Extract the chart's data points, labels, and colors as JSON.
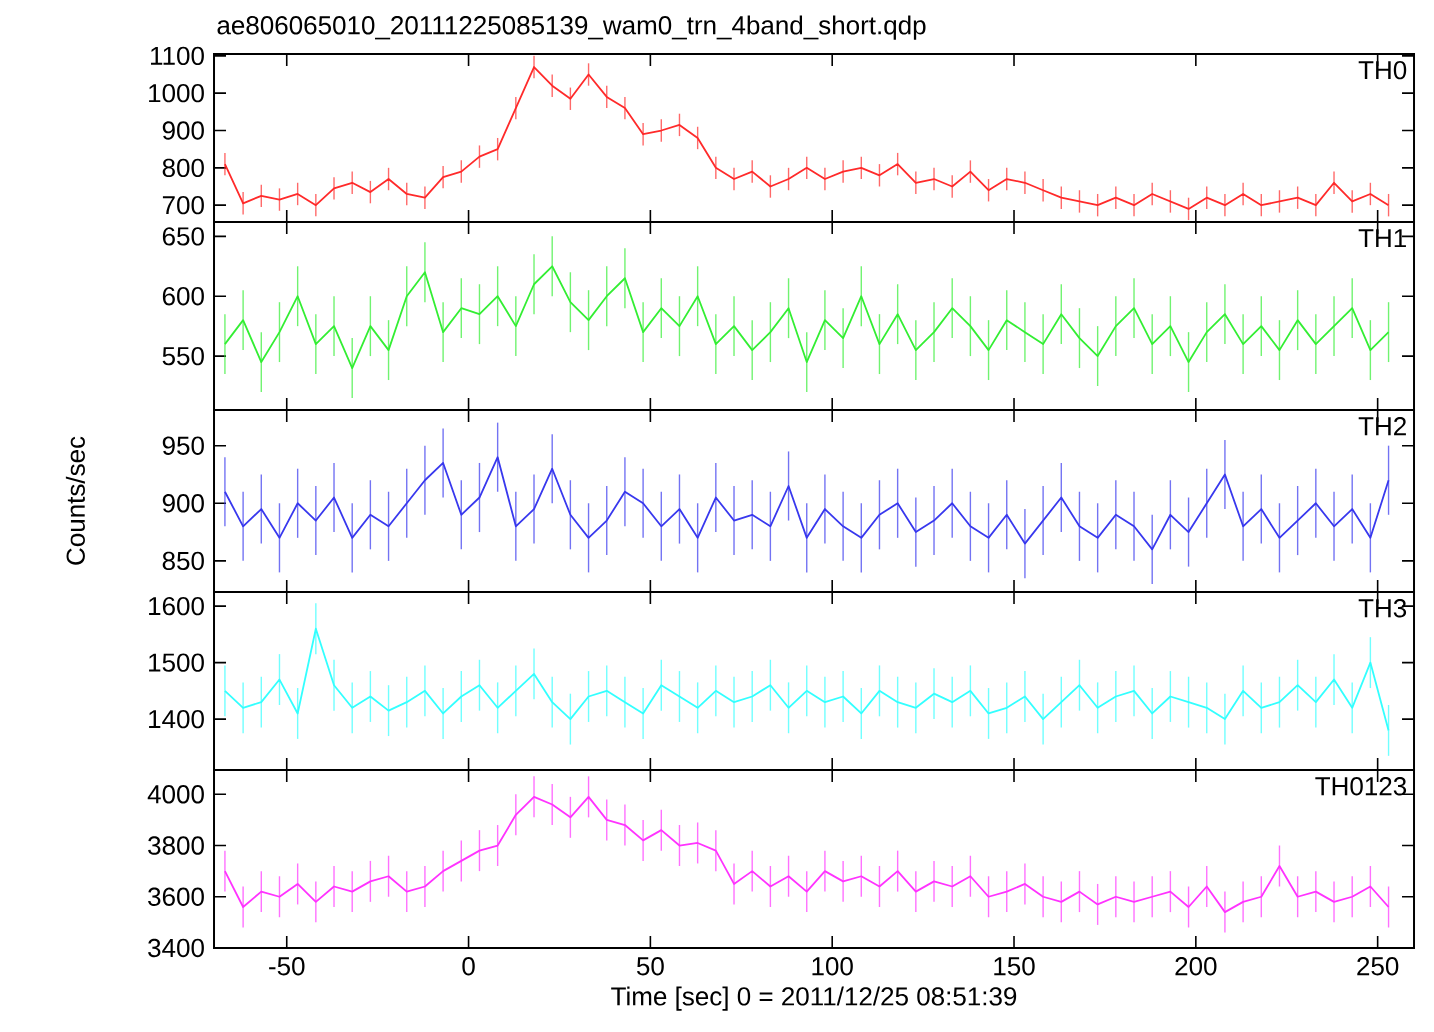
{
  "chart_data": [
    {
      "type": "line",
      "title": "ae806065010_20111225085139_wam0_trn_4band_short.qdp",
      "tick_labels": "y",
      "marker": "none",
      "line_style": "solid",
      "xlim": [
        -70,
        260
      ],
      "xticks": [
        -50,
        0,
        50,
        100,
        150,
        200,
        250
      ],
      "ylim": [
        655,
        1105
      ],
      "yticks": [
        700,
        800,
        900,
        1000,
        1100
      ],
      "x": [
        -67,
        -62,
        -57,
        -52,
        -47,
        -42,
        -37,
        -32,
        -27,
        -22,
        -17,
        -12,
        -7,
        -2,
        3,
        8,
        13,
        18,
        23,
        28,
        33,
        38,
        43,
        48,
        53,
        58,
        63,
        68,
        73,
        78,
        83,
        88,
        93,
        98,
        103,
        108,
        113,
        118,
        123,
        128,
        133,
        138,
        143,
        148,
        153,
        158,
        163,
        168,
        173,
        178,
        183,
        188,
        193,
        198,
        203,
        208,
        213,
        218,
        223,
        228,
        233,
        238,
        243,
        248,
        253
      ],
      "series": [
        {
          "name": "TH0",
          "color": "#ff2a2a",
          "values": [
            810,
            705,
            725,
            715,
            730,
            700,
            745,
            760,
            735,
            770,
            730,
            720,
            775,
            790,
            830,
            850,
            960,
            1070,
            1020,
            985,
            1050,
            990,
            960,
            890,
            900,
            915,
            880,
            800,
            770,
            790,
            750,
            770,
            800,
            770,
            790,
            800,
            780,
            810,
            760,
            770,
            750,
            790,
            740,
            770,
            760,
            740,
            720,
            710,
            700,
            720,
            700,
            730,
            710,
            690,
            720,
            700,
            730,
            700,
            710,
            720,
            700,
            760,
            710,
            730,
            700
          ],
          "errors": [
            30,
            30,
            30,
            30,
            30,
            30,
            30,
            30,
            30,
            30,
            30,
            30,
            30,
            30,
            30,
            30,
            30,
            30,
            30,
            30,
            30,
            30,
            30,
            30,
            30,
            30,
            30,
            30,
            30,
            30,
            30,
            30,
            30,
            30,
            30,
            30,
            30,
            30,
            30,
            30,
            30,
            30,
            30,
            30,
            30,
            30,
            30,
            30,
            30,
            30,
            30,
            30,
            30,
            30,
            30,
            30,
            30,
            30,
            30,
            30,
            30,
            30,
            30,
            30,
            30
          ]
        }
      ]
    },
    {
      "type": "line",
      "tick_labels": "y",
      "marker": "none",
      "line_style": "solid",
      "xlim": [
        -70,
        260
      ],
      "xticks": [
        -50,
        0,
        50,
        100,
        150,
        200,
        250
      ],
      "ylim": [
        505,
        662
      ],
      "yticks": [
        550,
        600,
        650
      ],
      "x": [
        -67,
        -62,
        -57,
        -52,
        -47,
        -42,
        -37,
        -32,
        -27,
        -22,
        -17,
        -12,
        -7,
        -2,
        3,
        8,
        13,
        18,
        23,
        28,
        33,
        38,
        43,
        48,
        53,
        58,
        63,
        68,
        73,
        78,
        83,
        88,
        93,
        98,
        103,
        108,
        113,
        118,
        123,
        128,
        133,
        138,
        143,
        148,
        153,
        158,
        163,
        168,
        173,
        178,
        183,
        188,
        193,
        198,
        203,
        208,
        213,
        218,
        223,
        228,
        233,
        238,
        243,
        248,
        253
      ],
      "series": [
        {
          "name": "TH1",
          "color": "#33ee33",
          "values": [
            560,
            580,
            545,
            570,
            600,
            560,
            575,
            540,
            575,
            555,
            600,
            620,
            570,
            590,
            585,
            600,
            575,
            610,
            625,
            595,
            580,
            600,
            615,
            570,
            590,
            575,
            600,
            560,
            575,
            555,
            570,
            590,
            545,
            580,
            565,
            600,
            560,
            585,
            555,
            570,
            590,
            575,
            555,
            580,
            570,
            560,
            585,
            565,
            550,
            575,
            590,
            560,
            575,
            545,
            570,
            585,
            560,
            575,
            555,
            580,
            560,
            575,
            590,
            555,
            570
          ],
          "errors": [
            25,
            25,
            25,
            25,
            25,
            25,
            25,
            25,
            25,
            25,
            25,
            25,
            25,
            25,
            25,
            25,
            25,
            25,
            25,
            25,
            25,
            25,
            25,
            25,
            25,
            25,
            25,
            25,
            25,
            25,
            25,
            25,
            25,
            25,
            25,
            25,
            25,
            25,
            25,
            25,
            25,
            25,
            25,
            25,
            25,
            25,
            25,
            25,
            25,
            25,
            25,
            25,
            25,
            25,
            25,
            25,
            25,
            25,
            25,
            25,
            25,
            25,
            25,
            25,
            25
          ]
        }
      ]
    },
    {
      "type": "line",
      "ylabel": "Counts/sec",
      "tick_labels": "y",
      "marker": "none",
      "line_style": "solid",
      "xlim": [
        -70,
        260
      ],
      "xticks": [
        -50,
        0,
        50,
        100,
        150,
        200,
        250
      ],
      "ylim": [
        823,
        981
      ],
      "yticks": [
        850,
        900,
        950
      ],
      "x": [
        -67,
        -62,
        -57,
        -52,
        -47,
        -42,
        -37,
        -32,
        -27,
        -22,
        -17,
        -12,
        -7,
        -2,
        3,
        8,
        13,
        18,
        23,
        28,
        33,
        38,
        43,
        48,
        53,
        58,
        63,
        68,
        73,
        78,
        83,
        88,
        93,
        98,
        103,
        108,
        113,
        118,
        123,
        128,
        133,
        138,
        143,
        148,
        153,
        158,
        163,
        168,
        173,
        178,
        183,
        188,
        193,
        198,
        203,
        208,
        213,
        218,
        223,
        228,
        233,
        238,
        243,
        248,
        253
      ],
      "series": [
        {
          "name": "TH2",
          "color": "#3838ee",
          "values": [
            910,
            880,
            895,
            870,
            900,
            885,
            905,
            870,
            890,
            880,
            900,
            920,
            935,
            890,
            905,
            940,
            880,
            895,
            930,
            890,
            870,
            885,
            910,
            900,
            880,
            895,
            870,
            905,
            885,
            890,
            880,
            915,
            870,
            895,
            880,
            870,
            890,
            900,
            875,
            885,
            900,
            880,
            870,
            890,
            865,
            885,
            905,
            880,
            870,
            890,
            880,
            860,
            890,
            875,
            900,
            925,
            880,
            895,
            870,
            885,
            900,
            880,
            895,
            870,
            920
          ],
          "errors": [
            30,
            30,
            30,
            30,
            30,
            30,
            30,
            30,
            30,
            30,
            30,
            30,
            30,
            30,
            30,
            30,
            30,
            30,
            30,
            30,
            30,
            30,
            30,
            30,
            30,
            30,
            30,
            30,
            30,
            30,
            30,
            30,
            30,
            30,
            30,
            30,
            30,
            30,
            30,
            30,
            30,
            30,
            30,
            30,
            30,
            30,
            30,
            30,
            30,
            30,
            30,
            30,
            30,
            30,
            30,
            30,
            30,
            30,
            30,
            30,
            30,
            30,
            30,
            30,
            30
          ]
        }
      ]
    },
    {
      "type": "line",
      "tick_labels": "y",
      "marker": "none",
      "line_style": "solid",
      "xlim": [
        -70,
        260
      ],
      "xticks": [
        -50,
        0,
        50,
        100,
        150,
        200,
        250
      ],
      "ylim": [
        1310,
        1625
      ],
      "yticks": [
        1400,
        1500,
        1600
      ],
      "x": [
        -67,
        -62,
        -57,
        -52,
        -47,
        -42,
        -37,
        -32,
        -27,
        -22,
        -17,
        -12,
        -7,
        -2,
        3,
        8,
        13,
        18,
        23,
        28,
        33,
        38,
        43,
        48,
        53,
        58,
        63,
        68,
        73,
        78,
        83,
        88,
        93,
        98,
        103,
        108,
        113,
        118,
        123,
        128,
        133,
        138,
        143,
        148,
        153,
        158,
        163,
        168,
        173,
        178,
        183,
        188,
        193,
        198,
        203,
        208,
        213,
        218,
        223,
        228,
        233,
        238,
        243,
        248,
        253
      ],
      "series": [
        {
          "name": "TH3",
          "color": "#33ffff",
          "values": [
            1450,
            1420,
            1430,
            1470,
            1410,
            1560,
            1460,
            1420,
            1440,
            1415,
            1430,
            1450,
            1410,
            1440,
            1460,
            1420,
            1450,
            1480,
            1430,
            1400,
            1440,
            1450,
            1430,
            1410,
            1460,
            1440,
            1420,
            1450,
            1430,
            1440,
            1460,
            1420,
            1450,
            1430,
            1440,
            1410,
            1450,
            1430,
            1420,
            1445,
            1430,
            1450,
            1410,
            1420,
            1440,
            1400,
            1430,
            1460,
            1420,
            1440,
            1450,
            1410,
            1440,
            1430,
            1420,
            1400,
            1450,
            1420,
            1430,
            1460,
            1430,
            1470,
            1420,
            1500,
            1380
          ],
          "errors": [
            45,
            45,
            45,
            45,
            45,
            45,
            45,
            45,
            45,
            45,
            45,
            45,
            45,
            45,
            45,
            45,
            45,
            45,
            45,
            45,
            45,
            45,
            45,
            45,
            45,
            45,
            45,
            45,
            45,
            45,
            45,
            45,
            45,
            45,
            45,
            45,
            45,
            45,
            45,
            45,
            45,
            45,
            45,
            45,
            45,
            45,
            45,
            45,
            45,
            45,
            45,
            45,
            45,
            45,
            45,
            45,
            45,
            45,
            45,
            45,
            45,
            45,
            45,
            45,
            45
          ]
        }
      ]
    },
    {
      "type": "line",
      "xlabel": "Time [sec] 0 = 2011/12/25 08:51:39",
      "marker": "none",
      "line_style": "solid",
      "xlim": [
        -70,
        260
      ],
      "xticks": [
        -50,
        0,
        50,
        100,
        150,
        200,
        250
      ],
      "ylim": [
        3400,
        4095
      ],
      "yticks": [
        3400,
        3600,
        3800,
        4000
      ],
      "x": [
        -67,
        -62,
        -57,
        -52,
        -47,
        -42,
        -37,
        -32,
        -27,
        -22,
        -17,
        -12,
        -7,
        -2,
        3,
        8,
        13,
        18,
        23,
        28,
        33,
        38,
        43,
        48,
        53,
        58,
        63,
        68,
        73,
        78,
        83,
        88,
        93,
        98,
        103,
        108,
        113,
        118,
        123,
        128,
        133,
        138,
        143,
        148,
        153,
        158,
        163,
        168,
        173,
        178,
        183,
        188,
        193,
        198,
        203,
        208,
        213,
        218,
        223,
        228,
        233,
        238,
        243,
        248,
        253
      ],
      "series": [
        {
          "name": "TH0123",
          "color": "#ff33ff",
          "values": [
            3700,
            3560,
            3620,
            3600,
            3650,
            3580,
            3640,
            3620,
            3660,
            3680,
            3620,
            3640,
            3700,
            3740,
            3780,
            3800,
            3920,
            3990,
            3960,
            3910,
            3990,
            3900,
            3880,
            3820,
            3860,
            3800,
            3810,
            3780,
            3650,
            3700,
            3640,
            3680,
            3620,
            3700,
            3660,
            3680,
            3640,
            3700,
            3620,
            3660,
            3640,
            3680,
            3600,
            3620,
            3650,
            3600,
            3580,
            3620,
            3570,
            3600,
            3580,
            3600,
            3620,
            3560,
            3640,
            3540,
            3580,
            3600,
            3720,
            3600,
            3620,
            3580,
            3600,
            3640,
            3560
          ],
          "errors": [
            80,
            80,
            80,
            80,
            80,
            80,
            80,
            80,
            80,
            80,
            80,
            80,
            80,
            80,
            80,
            80,
            80,
            80,
            80,
            80,
            80,
            80,
            80,
            80,
            80,
            80,
            80,
            80,
            80,
            80,
            80,
            80,
            80,
            80,
            80,
            80,
            80,
            80,
            80,
            80,
            80,
            80,
            80,
            80,
            80,
            80,
            80,
            80,
            80,
            80,
            80,
            80,
            80,
            80,
            80,
            80,
            80,
            80,
            80,
            80,
            80,
            80,
            80,
            80,
            80
          ]
        }
      ]
    }
  ]
}
